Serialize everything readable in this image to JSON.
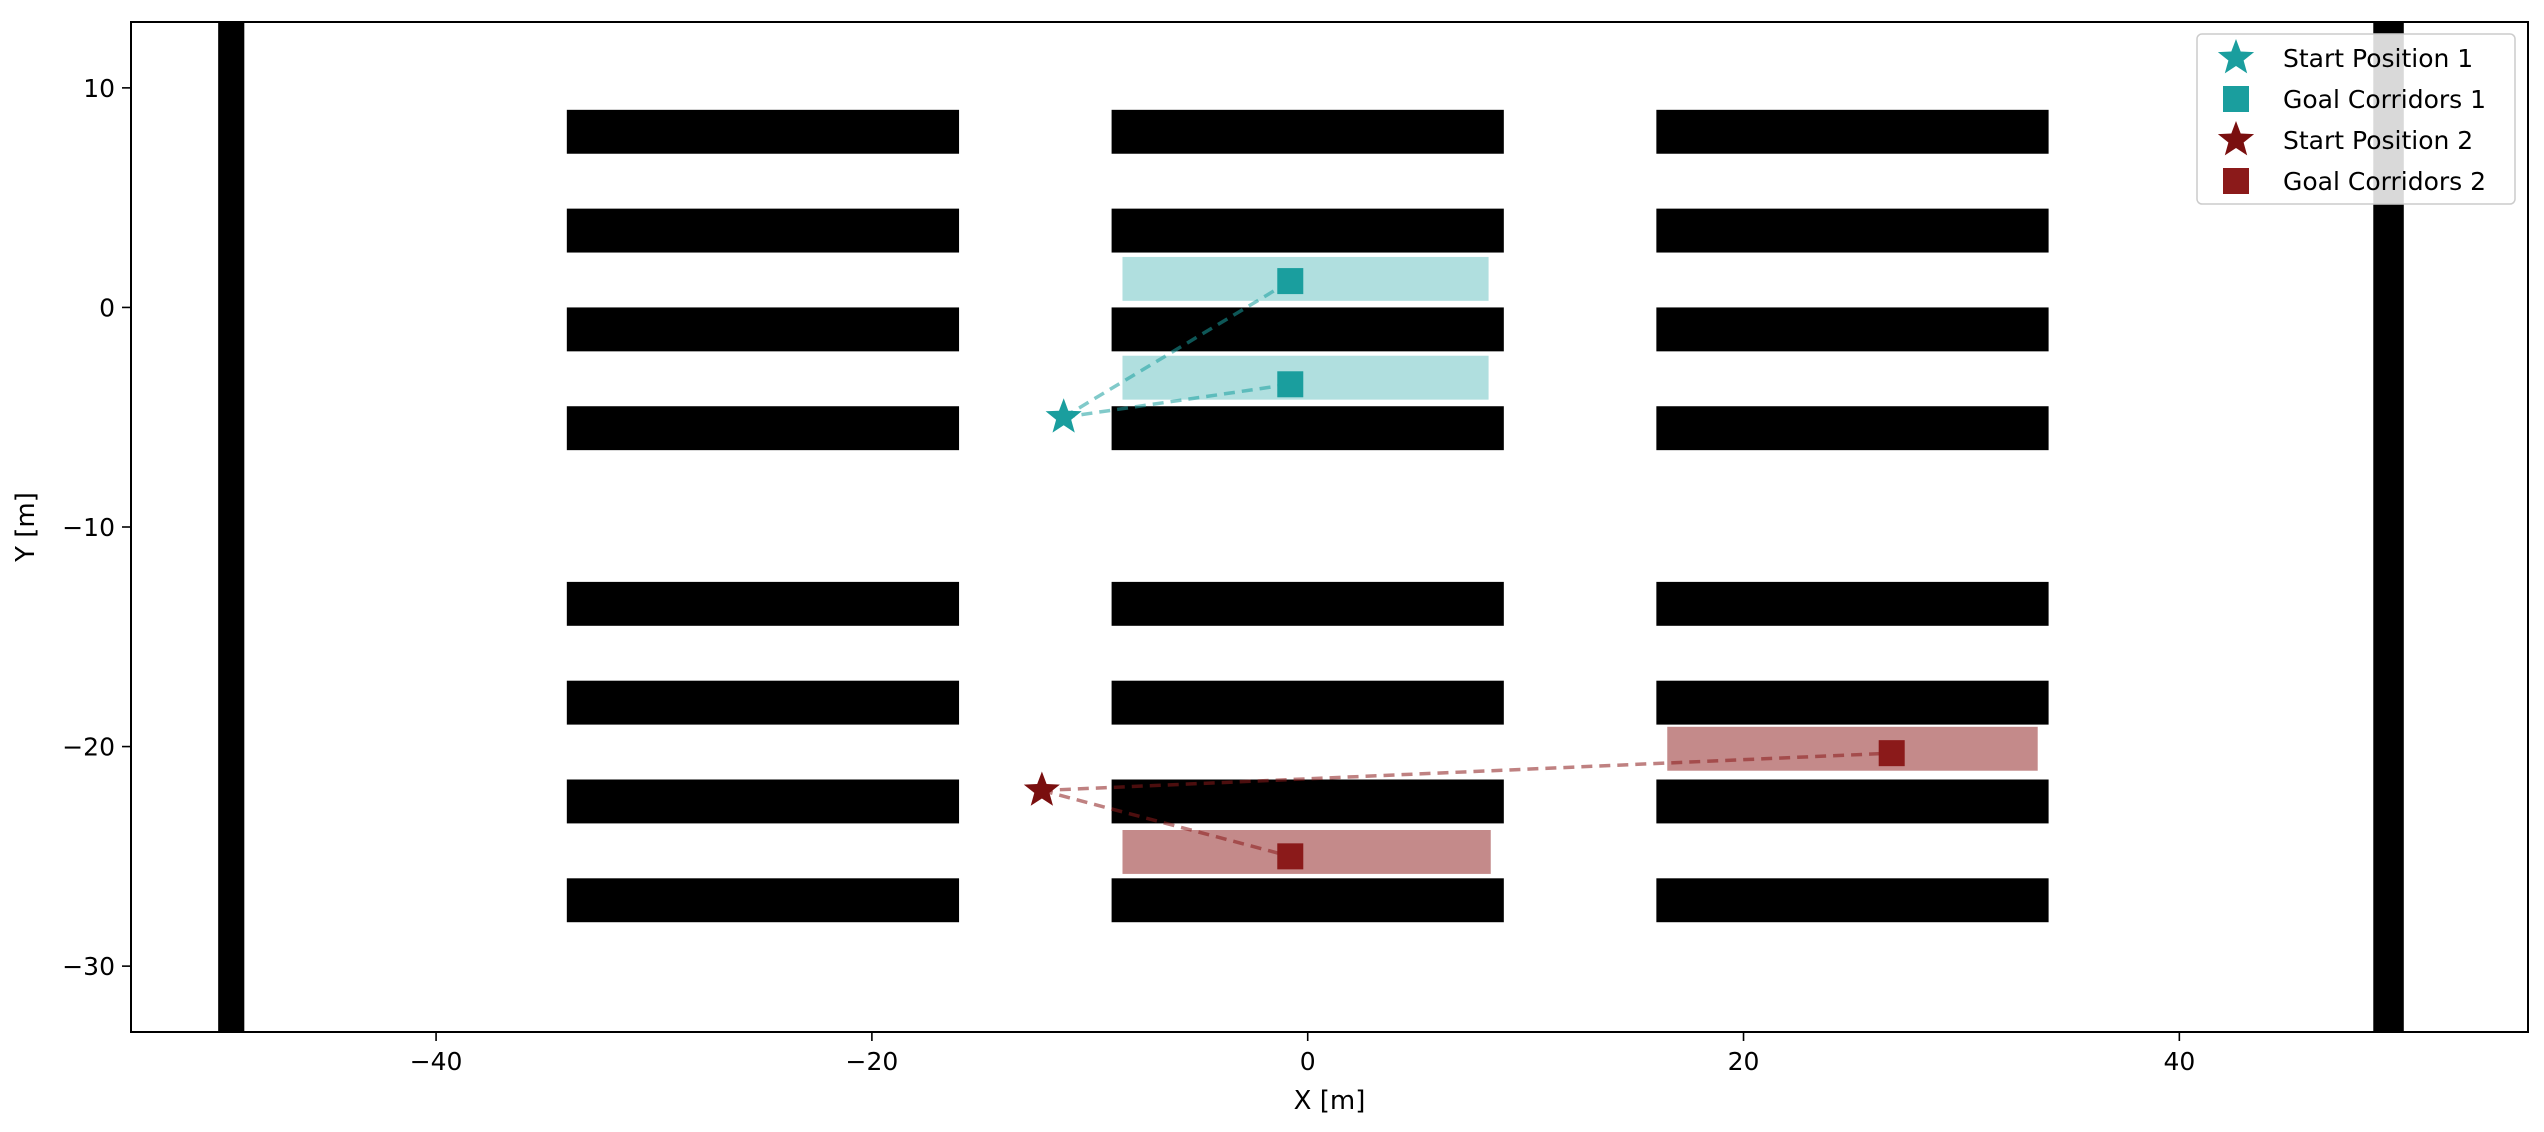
{
  "chart_data": {
    "type": "scatter",
    "title": "",
    "xlabel": "X [m]",
    "ylabel": "Y [m]",
    "xlim": [
      -54,
      56
    ],
    "ylim": [
      -33,
      13
    ],
    "xticks": [
      -40,
      -20,
      0,
      20,
      40
    ],
    "yticks": [
      -30,
      -20,
      -10,
      0,
      10
    ],
    "xtick_labels": [
      "−40",
      "−20",
      "0",
      "20",
      "40"
    ],
    "ytick_labels": [
      "−30",
      "−20",
      "−10",
      "0",
      "10"
    ],
    "grid": false,
    "legend_position": "top-right",
    "colors": {
      "series1": "#1a9e9e",
      "series1_corridor": "#b0dfdf",
      "series2": "#8b1a1a",
      "series2_corridor": "#c48a8a",
      "obstacle": "#000000"
    },
    "obstacles": [
      {
        "x": [
          -50.0,
          -48.8
        ],
        "y": [
          -33,
          13
        ]
      },
      {
        "x": [
          48.9,
          50.3
        ],
        "y": [
          -33,
          13
        ]
      },
      {
        "x": [
          -34,
          -16
        ],
        "y": [
          7.0,
          9.0
        ]
      },
      {
        "x": [
          -34,
          -16
        ],
        "y": [
          2.5,
          4.5
        ]
      },
      {
        "x": [
          -34,
          -16
        ],
        "y": [
          -2.0,
          0.0
        ]
      },
      {
        "x": [
          -34,
          -16
        ],
        "y": [
          -6.5,
          -4.5
        ]
      },
      {
        "x": [
          -34,
          -16
        ],
        "y": [
          -14.5,
          -12.5
        ]
      },
      {
        "x": [
          -34,
          -16
        ],
        "y": [
          -19.0,
          -17.0
        ]
      },
      {
        "x": [
          -34,
          -16
        ],
        "y": [
          -23.5,
          -21.5
        ]
      },
      {
        "x": [
          -34,
          -16
        ],
        "y": [
          -28.0,
          -26.0
        ]
      },
      {
        "x": [
          -9,
          9
        ],
        "y": [
          7.0,
          9.0
        ]
      },
      {
        "x": [
          -9,
          9
        ],
        "y": [
          2.5,
          4.5
        ]
      },
      {
        "x": [
          -9,
          9
        ],
        "y": [
          -2.0,
          0.0
        ]
      },
      {
        "x": [
          -9,
          9
        ],
        "y": [
          -6.5,
          -4.5
        ]
      },
      {
        "x": [
          -9,
          9
        ],
        "y": [
          -14.5,
          -12.5
        ]
      },
      {
        "x": [
          -9,
          9
        ],
        "y": [
          -19.0,
          -17.0
        ]
      },
      {
        "x": [
          -9,
          9
        ],
        "y": [
          -23.5,
          -21.5
        ]
      },
      {
        "x": [
          -9,
          9
        ],
        "y": [
          -28.0,
          -26.0
        ]
      },
      {
        "x": [
          16,
          34
        ],
        "y": [
          7.0,
          9.0
        ]
      },
      {
        "x": [
          16,
          34
        ],
        "y": [
          2.5,
          4.5
        ]
      },
      {
        "x": [
          16,
          34
        ],
        "y": [
          -2.0,
          0.0
        ]
      },
      {
        "x": [
          16,
          34
        ],
        "y": [
          -6.5,
          -4.5
        ]
      },
      {
        "x": [
          16,
          34
        ],
        "y": [
          -14.5,
          -12.5
        ]
      },
      {
        "x": [
          16,
          34
        ],
        "y": [
          -19.0,
          -17.0
        ]
      },
      {
        "x": [
          16,
          34
        ],
        "y": [
          -23.5,
          -21.5
        ]
      },
      {
        "x": [
          16,
          34
        ],
        "y": [
          -28.0,
          -26.0
        ]
      }
    ],
    "series": [
      {
        "name": "Start Position 1",
        "marker": "star",
        "color": "#1a9e9e",
        "points": [
          {
            "x": -11.2,
            "y": -5.0
          }
        ]
      },
      {
        "name": "Goal Corridors 1",
        "marker": "square",
        "color": "#1a9e9e",
        "points": [
          {
            "x": -0.8,
            "y": 1.2
          },
          {
            "x": -0.8,
            "y": -3.5
          }
        ],
        "corridors": [
          {
            "x": [
              -8.5,
              8.3
            ],
            "y": [
              0.3,
              2.3
            ]
          },
          {
            "x": [
              -8.5,
              8.3
            ],
            "y": [
              -4.2,
              -2.2
            ]
          }
        ]
      },
      {
        "name": "Start Position 2",
        "marker": "star",
        "color": "#7a0f0f",
        "points": [
          {
            "x": -12.2,
            "y": -22.0
          }
        ]
      },
      {
        "name": "Goal Corridors 2",
        "marker": "square",
        "color": "#8b1a1a",
        "points": [
          {
            "x": 26.8,
            "y": -20.3
          },
          {
            "x": -0.8,
            "y": -25.0
          }
        ],
        "corridors": [
          {
            "x": [
              16.5,
              33.5
            ],
            "y": [
              -21.1,
              -19.1
            ]
          },
          {
            "x": [
              -8.5,
              8.4
            ],
            "y": [
              -25.8,
              -23.8
            ]
          }
        ]
      }
    ]
  }
}
